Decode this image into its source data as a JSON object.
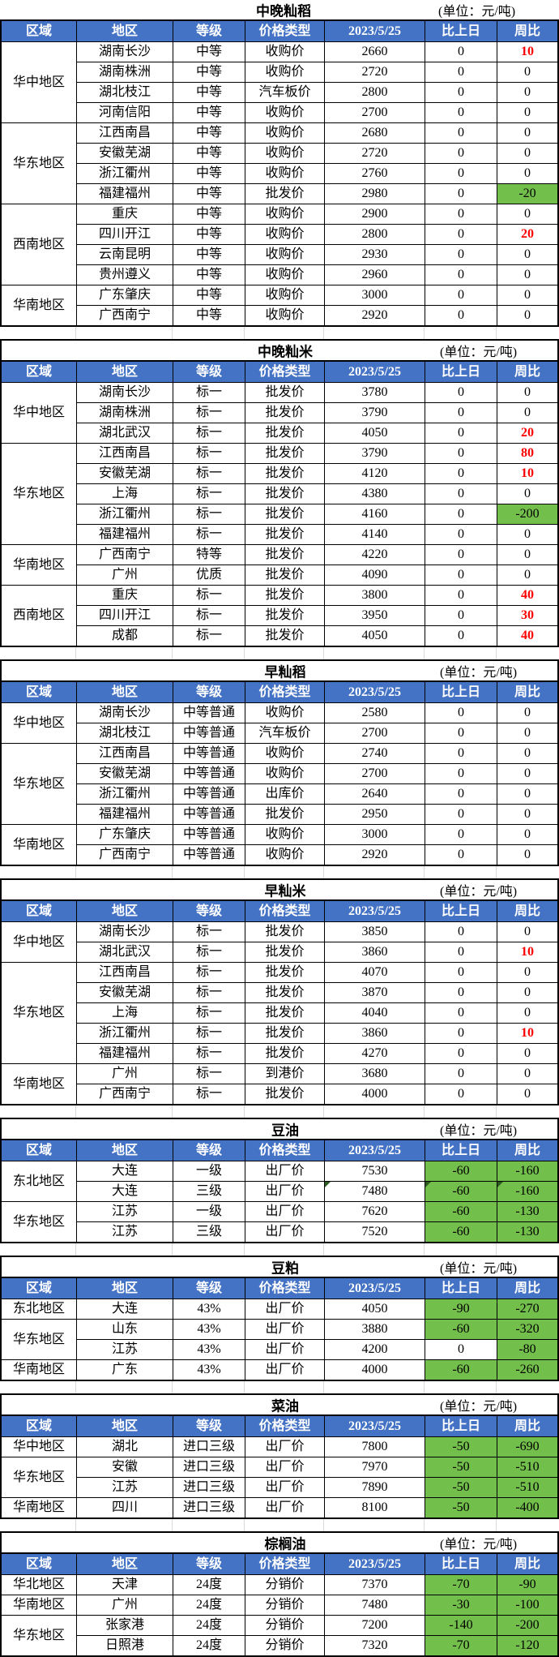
{
  "unit_label": "(单位：元/吨)",
  "columns": [
    "区域",
    "地区",
    "等级",
    "价格类型",
    "2023/5/25",
    "比上日",
    "周比"
  ],
  "colors": {
    "header_bg": "#4472C4",
    "header_text": "#FFFFFF",
    "green_bg": "#73BF4B",
    "red_text": "#FF0000",
    "triangle": "#2D5A1E",
    "border": "#000000"
  },
  "tables": [
    {
      "title": "中晚籼稻",
      "regions": [
        {
          "region": "华中地区",
          "rows": [
            {
              "area": "湖南长沙",
              "grade": "中等",
              "type": "收购价",
              "price": "2660",
              "day": "0",
              "week": "10",
              "week_color": "red"
            },
            {
              "area": "湖南株洲",
              "grade": "中等",
              "type": "收购价",
              "price": "2720",
              "day": "0",
              "week": "0"
            },
            {
              "area": "湖北枝江",
              "grade": "中等",
              "type": "汽车板价",
              "price": "2800",
              "day": "0",
              "week": "0"
            },
            {
              "area": "河南信阳",
              "grade": "中等",
              "type": "收购价",
              "price": "2700",
              "day": "0",
              "week": "0"
            }
          ]
        },
        {
          "region": "华东地区",
          "rows": [
            {
              "area": "江西南昌",
              "grade": "中等",
              "type": "收购价",
              "price": "2680",
              "day": "0",
              "week": "0"
            },
            {
              "area": "安徽芜湖",
              "grade": "中等",
              "type": "收购价",
              "price": "2720",
              "day": "0",
              "week": "0"
            },
            {
              "area": "浙江衢州",
              "grade": "中等",
              "type": "收购价",
              "price": "2760",
              "day": "0",
              "week": "0"
            },
            {
              "area": "福建福州",
              "grade": "中等",
              "type": "批发价",
              "price": "2980",
              "day": "0",
              "week": "-20",
              "week_bg": "green"
            }
          ]
        },
        {
          "region": "西南地区",
          "rows": [
            {
              "area": "重庆",
              "grade": "中等",
              "type": "收购价",
              "price": "2900",
              "day": "0",
              "week": "0"
            },
            {
              "area": "四川开江",
              "grade": "中等",
              "type": "收购价",
              "price": "2800",
              "day": "0",
              "week": "20",
              "week_color": "red"
            },
            {
              "area": "云南昆明",
              "grade": "中等",
              "type": "收购价",
              "price": "2930",
              "day": "0",
              "week": "0"
            },
            {
              "area": "贵州遵义",
              "grade": "中等",
              "type": "收购价",
              "price": "2960",
              "day": "0",
              "week": "0"
            }
          ]
        },
        {
          "region": "华南地区",
          "rows": [
            {
              "area": "广东肇庆",
              "grade": "中等",
              "type": "收购价",
              "price": "3000",
              "day": "0",
              "week": "0"
            },
            {
              "area": "广西南宁",
              "grade": "中等",
              "type": "收购价",
              "price": "2920",
              "day": "0",
              "week": "0"
            }
          ]
        }
      ]
    },
    {
      "title": "中晚籼米",
      "regions": [
        {
          "region": "华中地区",
          "rows": [
            {
              "area": "湖南长沙",
              "grade": "标一",
              "type": "批发价",
              "price": "3780",
              "day": "0",
              "week": "0"
            },
            {
              "area": "湖南株洲",
              "grade": "标一",
              "type": "批发价",
              "price": "3790",
              "day": "0",
              "week": "0"
            },
            {
              "area": "湖北武汉",
              "grade": "标一",
              "type": "批发价",
              "price": "4050",
              "day": "0",
              "week": "20",
              "week_color": "red"
            }
          ]
        },
        {
          "region": "华东地区",
          "rows": [
            {
              "area": "江西南昌",
              "grade": "标一",
              "type": "批发价",
              "price": "3790",
              "day": "0",
              "week": "80",
              "week_color": "red"
            },
            {
              "area": "安徽芜湖",
              "grade": "标一",
              "type": "批发价",
              "price": "4120",
              "day": "0",
              "week": "10",
              "week_color": "red"
            },
            {
              "area": "上海",
              "grade": "标一",
              "type": "批发价",
              "price": "4380",
              "day": "0",
              "week": "0"
            },
            {
              "area": "浙江衢州",
              "grade": "标一",
              "type": "批发价",
              "price": "4160",
              "day": "0",
              "week": "-200",
              "week_bg": "green"
            },
            {
              "area": "福建福州",
              "grade": "标一",
              "type": "批发价",
              "price": "4140",
              "day": "0",
              "week": "0"
            }
          ]
        },
        {
          "region": "华南地区",
          "rows": [
            {
              "area": "广西南宁",
              "grade": "特等",
              "type": "批发价",
              "price": "4220",
              "day": "0",
              "week": "0"
            },
            {
              "area": "广州",
              "grade": "优质",
              "type": "批发价",
              "price": "4090",
              "day": "0",
              "week": "0"
            }
          ]
        },
        {
          "region": "西南地区",
          "rows": [
            {
              "area": "重庆",
              "grade": "标一",
              "type": "批发价",
              "price": "3800",
              "day": "0",
              "week": "40",
              "week_color": "red"
            },
            {
              "area": "四川开江",
              "grade": "标一",
              "type": "批发价",
              "price": "3950",
              "day": "0",
              "week": "30",
              "week_color": "red"
            },
            {
              "area": "成都",
              "grade": "标一",
              "type": "批发价",
              "price": "4050",
              "day": "0",
              "week": "40",
              "week_color": "red"
            }
          ]
        }
      ]
    },
    {
      "title": "早籼稻",
      "regions": [
        {
          "region": "华中地区",
          "rows": [
            {
              "area": "湖南长沙",
              "grade": "中等普通",
              "type": "收购价",
              "price": "2580",
              "day": "0",
              "week": "0"
            },
            {
              "area": "湖北枝江",
              "grade": "中等普通",
              "type": "汽车板价",
              "price": "2700",
              "day": "0",
              "week": "0"
            }
          ]
        },
        {
          "region": "华东地区",
          "rows": [
            {
              "area": "江西南昌",
              "grade": "中等普通",
              "type": "收购价",
              "price": "2740",
              "day": "0",
              "week": "0"
            },
            {
              "area": "安徽芜湖",
              "grade": "中等普通",
              "type": "收购价",
              "price": "2700",
              "day": "0",
              "week": "0"
            },
            {
              "area": "浙江衢州",
              "grade": "中等普通",
              "type": "出库价",
              "price": "2640",
              "day": "0",
              "week": "0"
            },
            {
              "area": "福建福州",
              "grade": "中等普通",
              "type": "批发价",
              "price": "2950",
              "day": "0",
              "week": "0"
            }
          ]
        },
        {
          "region": "华南地区",
          "rows": [
            {
              "area": "广东肇庆",
              "grade": "中等普通",
              "type": "收购价",
              "price": "3000",
              "day": "0",
              "week": "0"
            },
            {
              "area": "广西南宁",
              "grade": "中等普通",
              "type": "收购价",
              "price": "2920",
              "day": "0",
              "week": "0"
            }
          ]
        }
      ]
    },
    {
      "title": "早籼米",
      "regions": [
        {
          "region": "华中地区",
          "rows": [
            {
              "area": "湖南长沙",
              "grade": "标一",
              "type": "批发价",
              "price": "3850",
              "day": "0",
              "week": "0"
            },
            {
              "area": "湖北武汉",
              "grade": "标一",
              "type": "批发价",
              "price": "3860",
              "day": "0",
              "week": "10",
              "week_color": "red"
            }
          ]
        },
        {
          "region": "华东地区",
          "rows": [
            {
              "area": "江西南昌",
              "grade": "标一",
              "type": "批发价",
              "price": "4070",
              "day": "0",
              "week": "0"
            },
            {
              "area": "安徽芜湖",
              "grade": "标一",
              "type": "批发价",
              "price": "3870",
              "day": "0",
              "week": "0"
            },
            {
              "area": "上海",
              "grade": "标一",
              "type": "批发价",
              "price": "4040",
              "day": "0",
              "week": "0"
            },
            {
              "area": "浙江衢州",
              "grade": "标一",
              "type": "批发价",
              "price": "3860",
              "day": "0",
              "week": "10",
              "week_color": "red"
            },
            {
              "area": "福建福州",
              "grade": "标一",
              "type": "批发价",
              "price": "4270",
              "day": "0",
              "week": "0"
            }
          ]
        },
        {
          "region": "华南地区",
          "rows": [
            {
              "area": "广州",
              "grade": "标一",
              "type": "到港价",
              "price": "3680",
              "day": "0",
              "week": "0"
            },
            {
              "area": "广西南宁",
              "grade": "标一",
              "type": "批发价",
              "price": "4000",
              "day": "0",
              "week": "0"
            }
          ]
        }
      ]
    },
    {
      "title": "豆油",
      "regions": [
        {
          "region": "东北地区",
          "rows": [
            {
              "area": "大连",
              "grade": "一级",
              "type": "出厂价",
              "price": "7530",
              "day": "-60",
              "week": "-160",
              "day_bg": "green",
              "week_bg": "green"
            },
            {
              "area": "大连",
              "grade": "三级",
              "type": "出厂价",
              "price": "7480",
              "day": "-60",
              "week": "-160",
              "day_bg": "green",
              "week_bg": "green",
              "tri": true
            }
          ]
        },
        {
          "region": "华东地区",
          "rows": [
            {
              "area": "江苏",
              "grade": "一级",
              "type": "出厂价",
              "price": "7620",
              "day": "-60",
              "week": "-130",
              "day_bg": "green",
              "week_bg": "green"
            },
            {
              "area": "江苏",
              "grade": "三级",
              "type": "出厂价",
              "price": "7520",
              "day": "-60",
              "week": "-130",
              "day_bg": "green",
              "week_bg": "green"
            }
          ]
        }
      ]
    },
    {
      "title": "豆粕",
      "regions": [
        {
          "region": "东北地区",
          "rows": [
            {
              "area": "大连",
              "grade": "43%",
              "type": "出厂价",
              "price": "4050",
              "day": "-90",
              "week": "-270",
              "day_bg": "green",
              "week_bg": "green"
            }
          ]
        },
        {
          "region": "华东地区",
          "rows": [
            {
              "area": "山东",
              "grade": "43%",
              "type": "出厂价",
              "price": "3880",
              "day": "-60",
              "week": "-320",
              "day_bg": "green",
              "week_bg": "green"
            },
            {
              "area": "江苏",
              "grade": "43%",
              "type": "出厂价",
              "price": "4200",
              "day": "0",
              "week": "-80",
              "week_bg": "green"
            }
          ]
        },
        {
          "region": "华南地区",
          "rows": [
            {
              "area": "广东",
              "grade": "43%",
              "type": "出厂价",
              "price": "4000",
              "day": "-60",
              "week": "-260",
              "day_bg": "green",
              "week_bg": "green"
            }
          ]
        }
      ]
    },
    {
      "title": "菜油",
      "regions": [
        {
          "region": "华中地区",
          "rows": [
            {
              "area": "湖北",
              "grade": "进口三级",
              "type": "出厂价",
              "price": "7800",
              "day": "-50",
              "week": "-690",
              "day_bg": "green",
              "week_bg": "green"
            }
          ]
        },
        {
          "region": "华东地区",
          "rows": [
            {
              "area": "安徽",
              "grade": "进口三级",
              "type": "出厂价",
              "price": "7970",
              "day": "-50",
              "week": "-510",
              "day_bg": "green",
              "week_bg": "green"
            },
            {
              "area": "江苏",
              "grade": "进口三级",
              "type": "出厂价",
              "price": "7890",
              "day": "-50",
              "week": "-510",
              "day_bg": "green",
              "week_bg": "green"
            }
          ]
        },
        {
          "region": "华南地区",
          "rows": [
            {
              "area": "四川",
              "grade": "进口三级",
              "type": "出厂价",
              "price": "8100",
              "day": "-50",
              "week": "-400",
              "day_bg": "green",
              "week_bg": "green"
            }
          ]
        }
      ]
    },
    {
      "title": "棕榈油",
      "regions": [
        {
          "region": "华北地区",
          "rows": [
            {
              "area": "天津",
              "grade": "24度",
              "type": "分销价",
              "price": "7370",
              "day": "-70",
              "week": "-90",
              "day_bg": "green",
              "week_bg": "green"
            }
          ]
        },
        {
          "region": "华南地区",
          "rows": [
            {
              "area": "广州",
              "grade": "24度",
              "type": "分销价",
              "price": "7480",
              "day": "-30",
              "week": "-100",
              "day_bg": "green",
              "week_bg": "green"
            }
          ]
        },
        {
          "region": "华东地区",
          "rows": [
            {
              "area": "张家港",
              "grade": "24度",
              "type": "分销价",
              "price": "7200",
              "day": "-140",
              "week": "-200",
              "day_bg": "green",
              "week_bg": "green"
            },
            {
              "area": "日照港",
              "grade": "24度",
              "type": "分销价",
              "price": "7320",
              "day": "-70",
              "week": "-120",
              "day_bg": "green",
              "week_bg": "green"
            }
          ]
        }
      ]
    }
  ]
}
